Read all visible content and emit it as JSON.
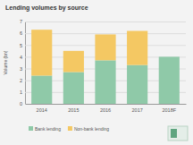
{
  "chart_data": {
    "type": "bar",
    "stacked": true,
    "title": "Lending volumes by source",
    "y_label": "Volume (bn)",
    "categories": [
      "2014",
      "2015",
      "2016",
      "2017",
      "2018F"
    ],
    "series": [
      {
        "name": "Bank lending",
        "color": "#8fc9a8",
        "values": [
          2.4,
          2.7,
          3.7,
          3.3,
          4.0
        ]
      },
      {
        "name": "Non-bank lending",
        "color": "#f4c863",
        "values": [
          3.9,
          1.8,
          2.2,
          2.9,
          null
        ]
      }
    ],
    "ylim": [
      0,
      7
    ],
    "yticks": [
      0,
      1,
      2,
      3,
      4,
      5,
      6,
      7
    ],
    "grid": true,
    "legend": "bottom"
  }
}
